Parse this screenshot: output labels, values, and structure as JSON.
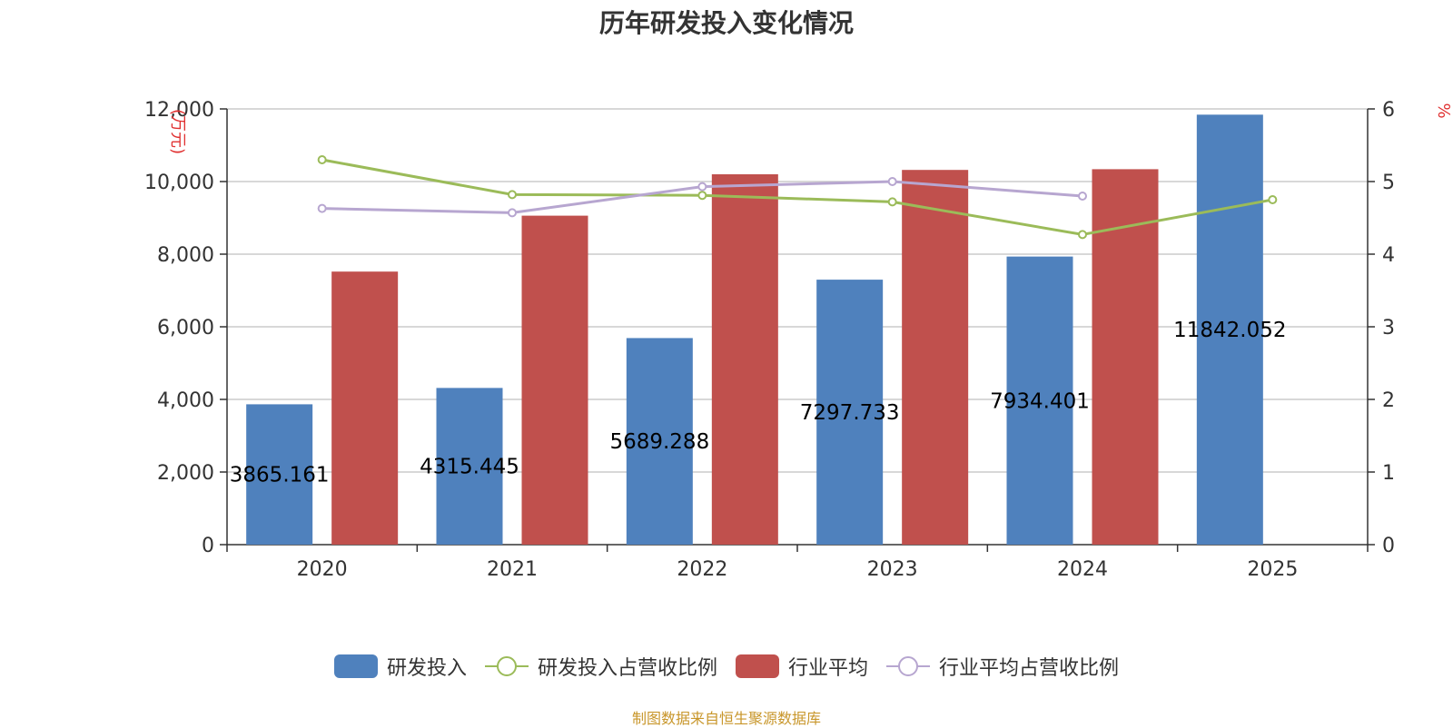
{
  "chart_data": {
    "type": "bar",
    "title": "历年研发投入变化情况",
    "categories": [
      "2020",
      "2021",
      "2022",
      "2023",
      "2024",
      "2025"
    ],
    "y_left_label": "(万元)",
    "y_right_label": "%",
    "y_left_ticks": [
      "0",
      "2,000",
      "4,000",
      "6,000",
      "8,000",
      "10,000",
      "12,000"
    ],
    "y_right_ticks": [
      "0",
      "1",
      "2",
      "3",
      "4",
      "5",
      "6"
    ],
    "ylim_left": [
      0,
      12000
    ],
    "ylim_right": [
      0,
      6
    ],
    "grid": true,
    "legend_position": "bottom",
    "series": [
      {
        "name": "研发投入",
        "type": "bar",
        "axis": "left",
        "color": "#4f81bd",
        "values": [
          3865.161,
          4315.445,
          5689.288,
          7297.733,
          7934.401,
          11842.052
        ],
        "labels": [
          "3865.161",
          "4315.445",
          "5689.288",
          "7297.733",
          "7934.401",
          "11842.052"
        ]
      },
      {
        "name": "研发投入占营收比例",
        "type": "line",
        "axis": "right",
        "color": "#9bbb59",
        "values": [
          5.3,
          4.82,
          4.81,
          4.72,
          4.27,
          4.75
        ]
      },
      {
        "name": "行业平均",
        "type": "bar",
        "axis": "left",
        "color": "#c0504d",
        "values": [
          7520,
          9060,
          10200,
          10320,
          10340,
          null
        ]
      },
      {
        "name": "行业平均占营收比例",
        "type": "line",
        "axis": "right",
        "color": "#b7a6d0",
        "values": [
          4.63,
          4.57,
          4.93,
          5.0,
          4.8,
          null
        ]
      }
    ]
  },
  "legend": {
    "items": [
      "研发投入",
      "研发投入占营收比例",
      "行业平均",
      "行业平均占营收比例"
    ]
  },
  "source": "制图数据来自恒生聚源数据库"
}
